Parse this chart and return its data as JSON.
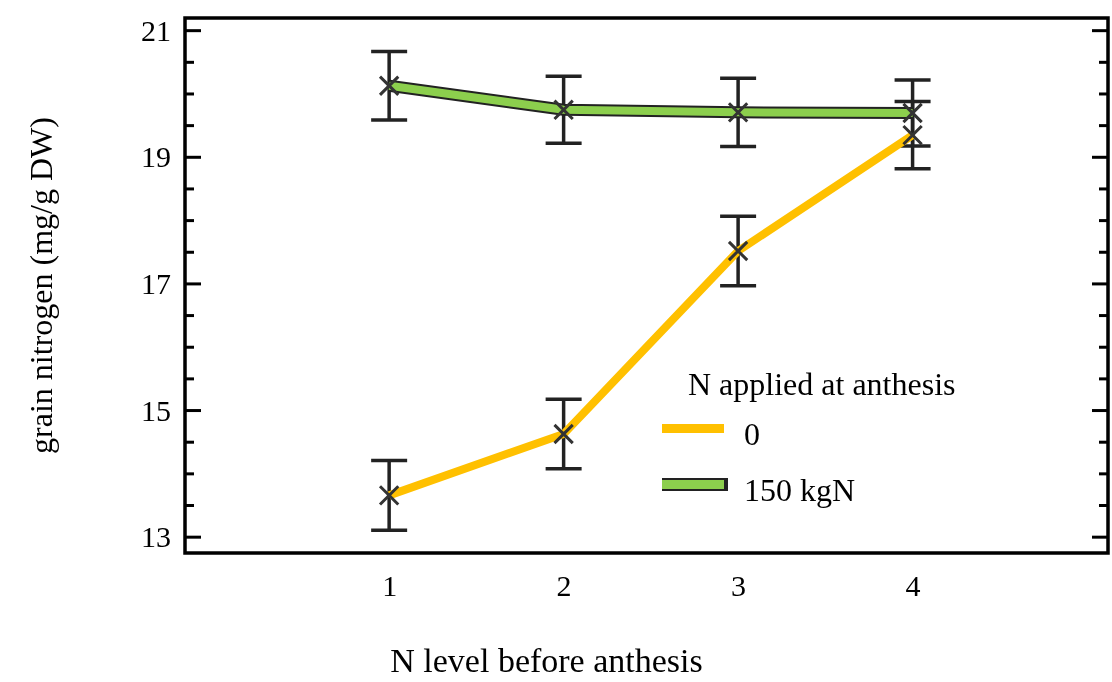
{
  "chart_data": {
    "type": "line",
    "xlabel": "N level before anthesis",
    "ylabel": "grain nitrogen (mg/g DW)",
    "legend_title": "N applied at anthesis",
    "x": [
      1,
      2,
      3,
      4
    ],
    "xlim": [
      -0.17,
      5.12
    ],
    "xticks": [
      1,
      2,
      3,
      4
    ],
    "ylim": [
      12.75,
      21.2
    ],
    "yticks": [
      13,
      {
        "value": 13.5,
        "label": null
      },
      {
        "value": 14,
        "label": null
      },
      {
        "value": 14.5,
        "label": null
      },
      15,
      {
        "value": 15.5,
        "label": null
      },
      {
        "value": 16,
        "label": null
      },
      {
        "value": 16.5,
        "label": null
      },
      17,
      {
        "value": 17.5,
        "label": null
      },
      {
        "value": 18,
        "label": null
      },
      {
        "value": 18.5,
        "label": null
      },
      19,
      {
        "value": 19.5,
        "label": null
      },
      {
        "value": 20,
        "label": null
      },
      {
        "value": 20.5,
        "label": null
      },
      21
    ],
    "series": [
      {
        "name": "0",
        "color": "#ffc000",
        "values": [
          13.66,
          14.63,
          17.52,
          19.35
        ],
        "errors": [
          0.55,
          0.55,
          0.55,
          0.53
        ]
      },
      {
        "name": "150 kgN",
        "color": "#8ccf4d",
        "values": [
          20.13,
          19.75,
          19.71,
          19.7
        ],
        "errors": [
          0.54,
          0.53,
          0.54,
          0.52
        ]
      }
    ],
    "marker": "cross",
    "legend": "bottom right",
    "grid": false
  }
}
